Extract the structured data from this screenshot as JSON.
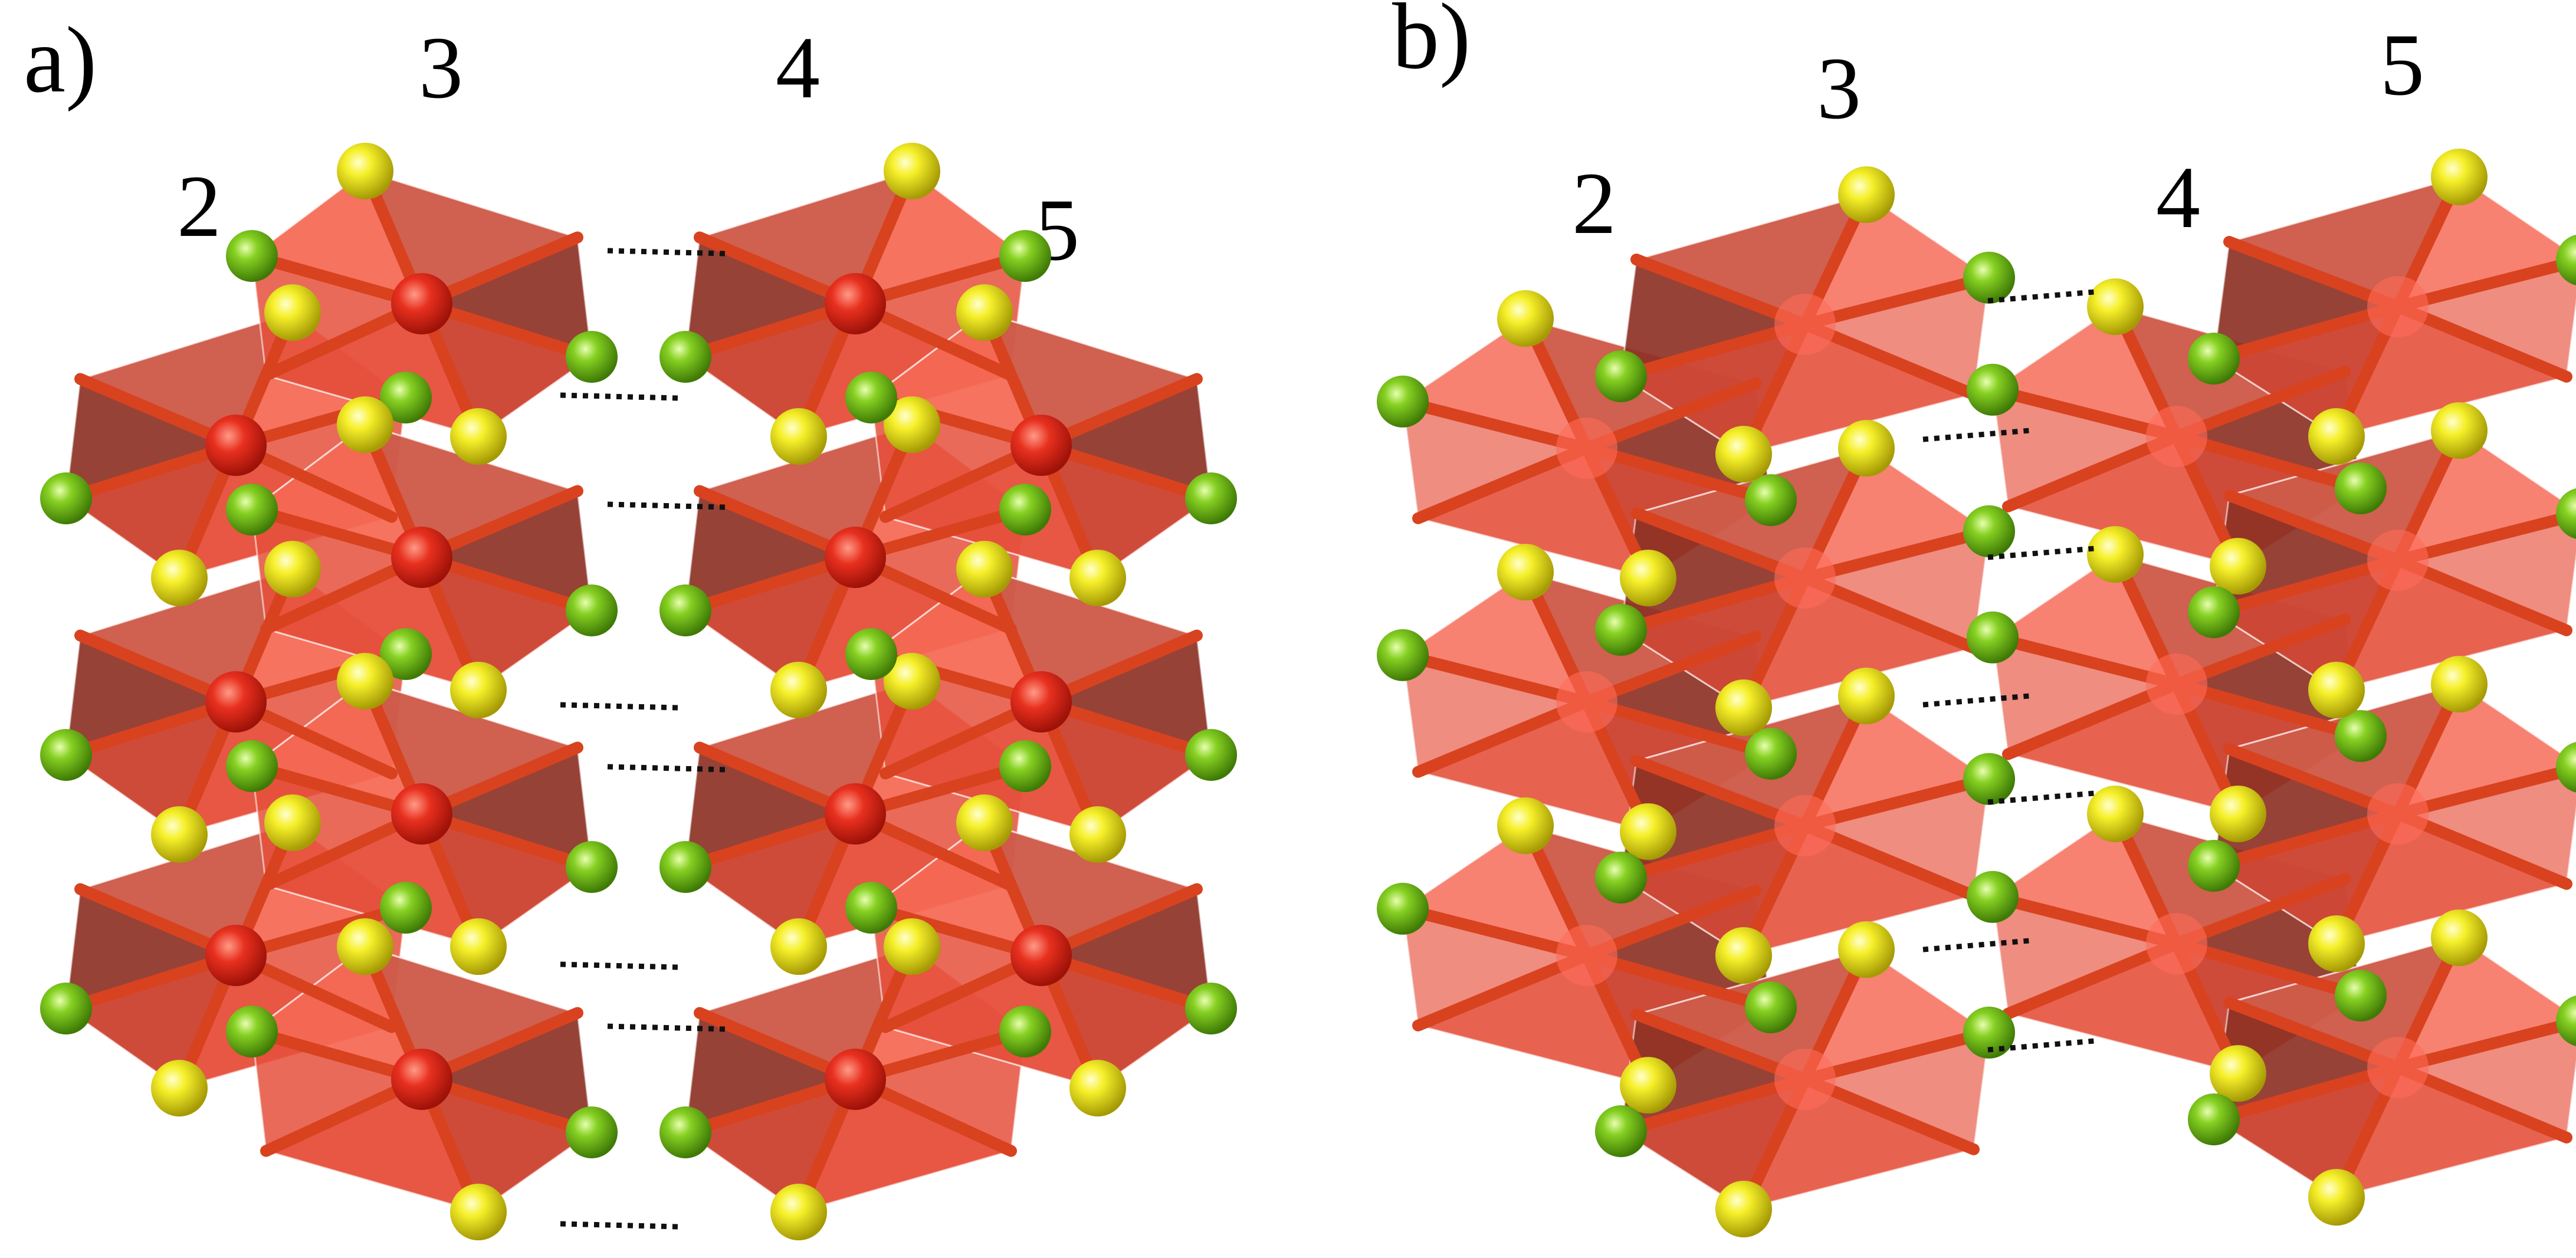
{
  "panels": [
    {
      "id": "a",
      "panel_label": "a)",
      "chain_labels": [
        "2",
        "3",
        "4",
        "5"
      ]
    },
    {
      "id": "b",
      "panel_label": "b)",
      "chain_labels": [
        "2",
        "3",
        "4",
        "5"
      ]
    }
  ],
  "colors": {
    "polyhedron_dark": "#8e3226",
    "polyhedron_face": "#e5503c",
    "polyhedron_light": "#ff7a64",
    "metal_atom": "#e8301f",
    "yellow_atom": "#f2ec1a",
    "green_atom": "#7fc51c",
    "contact_line": "#111111"
  },
  "icons": {
    "metal_atom": "red-sphere",
    "yellow_atom": "yellow-sphere",
    "green_atom": "green-sphere"
  }
}
